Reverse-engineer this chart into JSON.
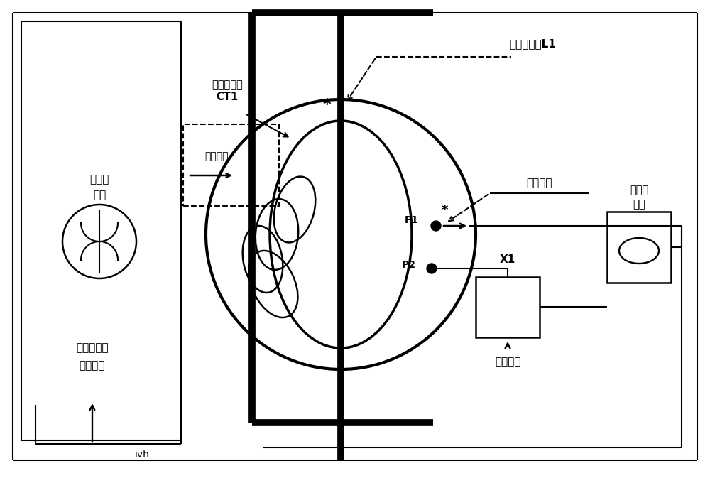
{
  "bg_color": "#ffffff",
  "line_color": "#000000",
  "fig_width": 10.0,
  "fig_height": 6.73,
  "thick_lw": 7,
  "med_lw": 2.5,
  "thin_lw": 1.5,
  "labels": {
    "primary_current": "一次载流体L1",
    "ct1_label": "穿心互感器\nCT1",
    "harmonic_current": "谐波电流",
    "harmonic_source_l1": "谐波电",
    "harmonic_source_l2": "流源",
    "open_circuit_l1": "互感器开路",
    "open_circuit_l2": "判断装置",
    "secondary_output": "二次输出",
    "current_sensor_l1": "电流传",
    "current_sensor_l2": "感器",
    "other_load": "其它负载",
    "x1_label": "X1",
    "ivh_label": "ivh",
    "p1_label": "P1",
    "p2_label": "P2",
    "star": "*"
  }
}
